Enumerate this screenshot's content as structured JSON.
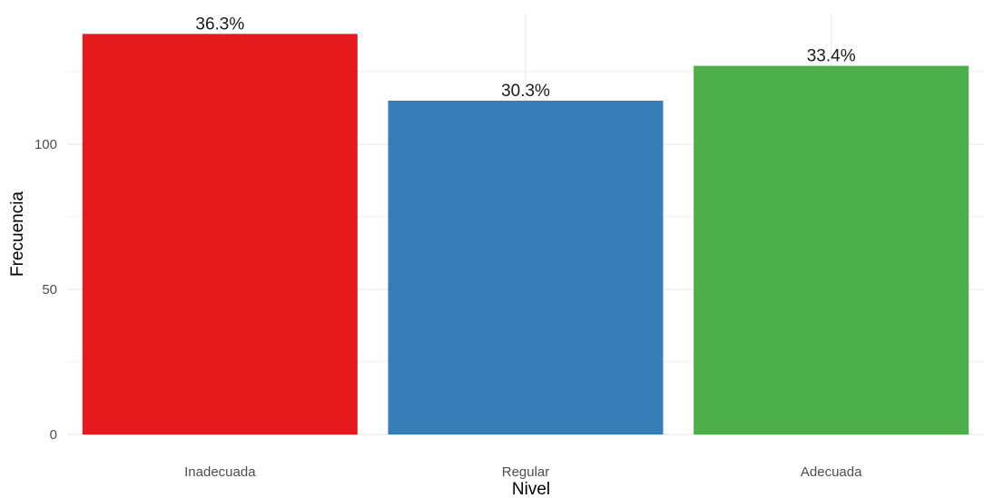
{
  "chart_data": {
    "type": "bar",
    "categories": [
      "Inadecuada",
      "Regular",
      "Adecuada"
    ],
    "values": [
      138,
      115,
      127
    ],
    "data_labels": [
      "36.3%",
      "30.3%",
      "33.4%"
    ],
    "colors": [
      "#e41a1c",
      "#377eb8",
      "#4daf4a"
    ],
    "title": "",
    "xlabel": "Nivel",
    "ylabel": "Frecuencia",
    "ylim": [
      0,
      145
    ],
    "y_ticks": [
      0,
      50,
      100
    ],
    "y_tick_labels": [
      "0",
      "50",
      "100"
    ],
    "grid": true,
    "legend": "none"
  }
}
